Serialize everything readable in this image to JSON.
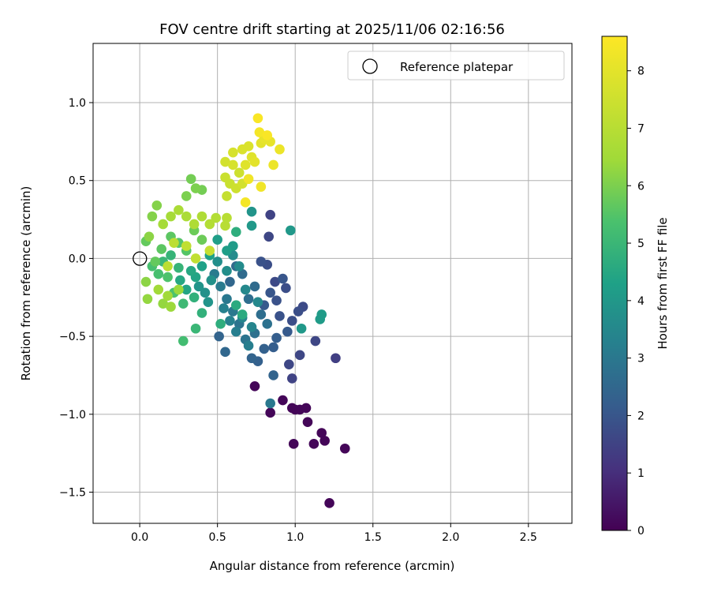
{
  "chart_data": {
    "type": "scatter",
    "title": "FOV centre drift starting at 2025/11/06 02:16:56",
    "xlabel": "Angular distance from reference (arcmin)",
    "ylabel": "Rotation from reference (arcmin)",
    "xlim": [
      -0.3,
      2.78
    ],
    "ylim": [
      -1.7,
      1.38
    ],
    "xticks": [
      0.0,
      0.5,
      1.0,
      1.5,
      2.0,
      2.5
    ],
    "xtick_labels": [
      "0.0",
      "0.5",
      "1.0",
      "1.5",
      "2.0",
      "2.5"
    ],
    "yticks": [
      1.0,
      0.5,
      0.0,
      -0.5,
      -1.0,
      -1.5
    ],
    "ytick_labels": [
      "1.0",
      "0.5",
      "0.0",
      "−0.5",
      "−1.0",
      "−1.5"
    ],
    "grid": true,
    "legend": {
      "position": "top-right",
      "entries": [
        "Reference platepar"
      ]
    },
    "reference_point": {
      "x": 0.0,
      "y": 0.0,
      "marker": "open-circle"
    },
    "colorbar": {
      "label": "Hours from first FF file",
      "colormap": "viridis",
      "range": [
        0,
        8.6
      ],
      "ticks": [
        0,
        1,
        2,
        3,
        4,
        5,
        6,
        7,
        8
      ],
      "tick_labels": [
        "0",
        "1",
        "2",
        "3",
        "4",
        "5",
        "6",
        "7",
        "8"
      ]
    },
    "points": [
      {
        "x": 1.22,
        "y": -1.57,
        "t": 0.1
      },
      {
        "x": 1.32,
        "y": -1.22,
        "t": 0.1
      },
      {
        "x": 1.17,
        "y": -1.12,
        "t": 0.1
      },
      {
        "x": 1.19,
        "y": -1.17,
        "t": 0.1
      },
      {
        "x": 1.12,
        "y": -1.19,
        "t": 0.1
      },
      {
        "x": 0.99,
        "y": -1.19,
        "t": 0.1
      },
      {
        "x": 1.08,
        "y": -1.05,
        "t": 0.1
      },
      {
        "x": 1.03,
        "y": -0.97,
        "t": 0.1
      },
      {
        "x": 0.98,
        "y": -0.96,
        "t": 0.1
      },
      {
        "x": 1.0,
        "y": -0.97,
        "t": 0.1
      },
      {
        "x": 1.07,
        "y": -0.96,
        "t": 0.1
      },
      {
        "x": 0.92,
        "y": -0.91,
        "t": 0.1
      },
      {
        "x": 0.84,
        "y": -0.99,
        "t": 0.1
      },
      {
        "x": 0.74,
        "y": -0.82,
        "t": 0.1
      },
      {
        "x": 1.26,
        "y": -0.64,
        "t": 1.4
      },
      {
        "x": 0.98,
        "y": -0.77,
        "t": 1.5
      },
      {
        "x": 1.03,
        "y": -0.62,
        "t": 1.6
      },
      {
        "x": 0.96,
        "y": -0.68,
        "t": 1.6
      },
      {
        "x": 1.13,
        "y": -0.53,
        "t": 1.6
      },
      {
        "x": 0.84,
        "y": 0.28,
        "t": 1.5
      },
      {
        "x": 0.83,
        "y": 0.14,
        "t": 1.6
      },
      {
        "x": 1.05,
        "y": -0.31,
        "t": 1.7
      },
      {
        "x": 1.02,
        "y": -0.34,
        "t": 1.8
      },
      {
        "x": 0.98,
        "y": -0.4,
        "t": 1.8
      },
      {
        "x": 0.94,
        "y": -0.19,
        "t": 1.8
      },
      {
        "x": 0.87,
        "y": -0.15,
        "t": 1.7
      },
      {
        "x": 0.82,
        "y": -0.04,
        "t": 1.8
      },
      {
        "x": 0.88,
        "y": -0.27,
        "t": 1.9
      },
      {
        "x": 0.9,
        "y": -0.37,
        "t": 1.9
      },
      {
        "x": 0.78,
        "y": -0.02,
        "t": 1.9
      },
      {
        "x": 0.92,
        "y": -0.13,
        "t": 2.0
      },
      {
        "x": 0.84,
        "y": -0.22,
        "t": 2.0
      },
      {
        "x": 0.8,
        "y": -0.3,
        "t": 2.1
      },
      {
        "x": 0.95,
        "y": -0.47,
        "t": 2.1
      },
      {
        "x": 0.88,
        "y": -0.51,
        "t": 2.2
      },
      {
        "x": 0.86,
        "y": -0.57,
        "t": 2.2
      },
      {
        "x": 0.8,
        "y": -0.58,
        "t": 2.3
      },
      {
        "x": 0.76,
        "y": -0.66,
        "t": 2.3
      },
      {
        "x": 0.72,
        "y": -0.64,
        "t": 2.4
      },
      {
        "x": 0.86,
        "y": -0.75,
        "t": 2.4
      },
      {
        "x": 0.55,
        "y": -0.6,
        "t": 2.5
      },
      {
        "x": 0.51,
        "y": -0.5,
        "t": 2.4
      },
      {
        "x": 0.58,
        "y": -0.15,
        "t": 2.5
      },
      {
        "x": 0.62,
        "y": -0.05,
        "t": 2.6
      },
      {
        "x": 0.66,
        "y": -0.1,
        "t": 2.6
      },
      {
        "x": 0.74,
        "y": -0.18,
        "t": 2.6
      },
      {
        "x": 0.7,
        "y": -0.26,
        "t": 2.7
      },
      {
        "x": 0.78,
        "y": -0.36,
        "t": 2.7
      },
      {
        "x": 0.82,
        "y": -0.42,
        "t": 2.8
      },
      {
        "x": 0.74,
        "y": -0.48,
        "t": 2.8
      },
      {
        "x": 0.68,
        "y": -0.52,
        "t": 2.9
      },
      {
        "x": 0.64,
        "y": -0.42,
        "t": 2.9
      },
      {
        "x": 0.6,
        "y": -0.34,
        "t": 3.0
      },
      {
        "x": 0.56,
        "y": -0.26,
        "t": 3.0
      },
      {
        "x": 0.52,
        "y": -0.18,
        "t": 3.1
      },
      {
        "x": 0.48,
        "y": -0.1,
        "t": 3.1
      },
      {
        "x": 0.84,
        "y": -0.93,
        "t": 3.0
      },
      {
        "x": 0.7,
        "y": -0.56,
        "t": 3.2
      },
      {
        "x": 0.62,
        "y": -0.47,
        "t": 3.2
      },
      {
        "x": 0.58,
        "y": -0.4,
        "t": 3.3
      },
      {
        "x": 0.54,
        "y": -0.32,
        "t": 3.3
      },
      {
        "x": 0.66,
        "y": -0.38,
        "t": 3.4
      },
      {
        "x": 0.72,
        "y": -0.44,
        "t": 3.4
      },
      {
        "x": 0.76,
        "y": -0.28,
        "t": 3.5
      },
      {
        "x": 0.68,
        "y": -0.2,
        "t": 3.5
      },
      {
        "x": 0.64,
        "y": -0.05,
        "t": 3.6
      },
      {
        "x": 0.6,
        "y": 0.02,
        "t": 3.6
      },
      {
        "x": 0.56,
        "y": -0.08,
        "t": 3.7
      },
      {
        "x": 0.5,
        "y": -0.02,
        "t": 3.7
      },
      {
        "x": 0.46,
        "y": -0.14,
        "t": 3.8
      },
      {
        "x": 0.42,
        "y": -0.22,
        "t": 3.8
      },
      {
        "x": 0.38,
        "y": -0.18,
        "t": 3.9
      },
      {
        "x": 0.44,
        "y": -0.28,
        "t": 3.9
      },
      {
        "x": 0.72,
        "y": 0.3,
        "t": 3.9
      },
      {
        "x": 0.72,
        "y": 0.21,
        "t": 4.0
      },
      {
        "x": 0.97,
        "y": 0.18,
        "t": 4.0
      },
      {
        "x": 1.04,
        "y": -0.45,
        "t": 4.0
      },
      {
        "x": 1.16,
        "y": -0.39,
        "t": 4.1
      },
      {
        "x": 1.17,
        "y": -0.36,
        "t": 4.1
      },
      {
        "x": 0.6,
        "y": 0.08,
        "t": 4.1
      },
      {
        "x": 0.56,
        "y": 0.05,
        "t": 4.2
      },
      {
        "x": 0.5,
        "y": 0.12,
        "t": 4.2
      },
      {
        "x": 0.45,
        "y": 0.02,
        "t": 4.3
      },
      {
        "x": 0.4,
        "y": -0.05,
        "t": 4.3
      },
      {
        "x": 0.36,
        "y": -0.12,
        "t": 4.4
      },
      {
        "x": 0.3,
        "y": -0.2,
        "t": 4.4
      },
      {
        "x": 0.26,
        "y": -0.14,
        "t": 4.5
      },
      {
        "x": 0.33,
        "y": -0.08,
        "t": 4.5
      },
      {
        "x": 0.62,
        "y": -0.3,
        "t": 4.6
      },
      {
        "x": 0.66,
        "y": -0.36,
        "t": 4.6
      },
      {
        "x": 0.62,
        "y": 0.17,
        "t": 4.7
      },
      {
        "x": 0.52,
        "y": -0.42,
        "t": 4.7
      },
      {
        "x": 0.4,
        "y": -0.35,
        "t": 4.8
      },
      {
        "x": 0.35,
        "y": -0.25,
        "t": 4.8
      },
      {
        "x": 0.25,
        "y": -0.06,
        "t": 4.9
      },
      {
        "x": 0.2,
        "y": 0.02,
        "t": 4.9
      },
      {
        "x": 0.15,
        "y": -0.02,
        "t": 5.0
      },
      {
        "x": 0.36,
        "y": -0.45,
        "t": 5.0
      },
      {
        "x": 0.28,
        "y": -0.29,
        "t": 5.1
      },
      {
        "x": 0.28,
        "y": -0.53,
        "t": 5.2
      },
      {
        "x": 0.12,
        "y": -0.1,
        "t": 5.3
      },
      {
        "x": 0.08,
        "y": -0.05,
        "t": 5.3
      },
      {
        "x": 0.22,
        "y": -0.22,
        "t": 5.4
      },
      {
        "x": 0.18,
        "y": -0.12,
        "t": 5.4
      },
      {
        "x": 0.3,
        "y": 0.05,
        "t": 5.5
      },
      {
        "x": 0.25,
        "y": 0.1,
        "t": 5.5
      },
      {
        "x": 0.2,
        "y": 0.14,
        "t": 5.6
      },
      {
        "x": 0.14,
        "y": 0.06,
        "t": 5.6
      },
      {
        "x": 0.1,
        "y": -0.02,
        "t": 5.7
      },
      {
        "x": 0.04,
        "y": 0.11,
        "t": 5.7
      },
      {
        "x": 0.35,
        "y": 0.18,
        "t": 5.8
      },
      {
        "x": 0.4,
        "y": 0.12,
        "t": 5.8
      },
      {
        "x": 0.4,
        "y": 0.44,
        "t": 5.9
      },
      {
        "x": 0.33,
        "y": 0.51,
        "t": 5.9
      },
      {
        "x": 0.3,
        "y": 0.4,
        "t": 6.0
      },
      {
        "x": 0.36,
        "y": 0.45,
        "t": 6.0
      },
      {
        "x": 0.11,
        "y": 0.34,
        "t": 6.1
      },
      {
        "x": 0.08,
        "y": 0.27,
        "t": 6.1
      },
      {
        "x": 0.06,
        "y": 0.14,
        "t": 6.2
      },
      {
        "x": 0.04,
        "y": -0.15,
        "t": 6.2
      },
      {
        "x": 0.05,
        "y": -0.26,
        "t": 6.3
      },
      {
        "x": 0.15,
        "y": -0.29,
        "t": 6.3
      },
      {
        "x": 0.2,
        "y": -0.31,
        "t": 6.4
      },
      {
        "x": 0.25,
        "y": -0.2,
        "t": 6.4
      },
      {
        "x": 0.18,
        "y": -0.24,
        "t": 6.5
      },
      {
        "x": 0.12,
        "y": -0.2,
        "t": 6.5
      },
      {
        "x": 0.15,
        "y": 0.22,
        "t": 6.6
      },
      {
        "x": 0.2,
        "y": 0.27,
        "t": 6.6
      },
      {
        "x": 0.25,
        "y": 0.31,
        "t": 6.7
      },
      {
        "x": 0.3,
        "y": 0.27,
        "t": 6.7
      },
      {
        "x": 0.35,
        "y": 0.22,
        "t": 6.8
      },
      {
        "x": 0.4,
        "y": 0.27,
        "t": 6.8
      },
      {
        "x": 0.45,
        "y": 0.22,
        "t": 6.9
      },
      {
        "x": 0.49,
        "y": 0.26,
        "t": 6.9
      },
      {
        "x": 0.55,
        "y": 0.21,
        "t": 7.0
      },
      {
        "x": 0.56,
        "y": 0.26,
        "t": 7.0
      },
      {
        "x": 0.22,
        "y": 0.1,
        "t": 7.1
      },
      {
        "x": 0.18,
        "y": -0.05,
        "t": 7.1
      },
      {
        "x": 0.3,
        "y": 0.08,
        "t": 7.2
      },
      {
        "x": 0.36,
        "y": 0.0,
        "t": 7.2
      },
      {
        "x": 0.45,
        "y": 0.05,
        "t": 7.3
      },
      {
        "x": 0.56,
        "y": 0.4,
        "t": 7.3
      },
      {
        "x": 0.58,
        "y": 0.48,
        "t": 7.4
      },
      {
        "x": 0.55,
        "y": 0.52,
        "t": 7.4
      },
      {
        "x": 0.62,
        "y": 0.45,
        "t": 7.5
      },
      {
        "x": 0.64,
        "y": 0.55,
        "t": 7.5
      },
      {
        "x": 0.66,
        "y": 0.48,
        "t": 7.6
      },
      {
        "x": 0.55,
        "y": 0.62,
        "t": 7.6
      },
      {
        "x": 0.6,
        "y": 0.6,
        "t": 7.7
      },
      {
        "x": 0.6,
        "y": 0.68,
        "t": 7.7
      },
      {
        "x": 0.66,
        "y": 0.7,
        "t": 7.8
      },
      {
        "x": 0.7,
        "y": 0.72,
        "t": 7.8
      },
      {
        "x": 0.68,
        "y": 0.6,
        "t": 7.9
      },
      {
        "x": 0.72,
        "y": 0.65,
        "t": 7.9
      },
      {
        "x": 0.74,
        "y": 0.62,
        "t": 8.0
      },
      {
        "x": 0.78,
        "y": 0.74,
        "t": 8.0
      },
      {
        "x": 0.8,
        "y": 0.77,
        "t": 8.1
      },
      {
        "x": 0.84,
        "y": 0.75,
        "t": 8.1
      },
      {
        "x": 0.86,
        "y": 0.6,
        "t": 8.2
      },
      {
        "x": 0.9,
        "y": 0.7,
        "t": 8.2
      },
      {
        "x": 0.78,
        "y": 0.46,
        "t": 8.3
      },
      {
        "x": 0.7,
        "y": 0.51,
        "t": 8.3
      },
      {
        "x": 0.68,
        "y": 0.36,
        "t": 8.4
      },
      {
        "x": 0.77,
        "y": 0.81,
        "t": 8.4
      },
      {
        "x": 0.76,
        "y": 0.9,
        "t": 8.5
      },
      {
        "x": 0.82,
        "y": 0.79,
        "t": 8.5
      }
    ]
  }
}
